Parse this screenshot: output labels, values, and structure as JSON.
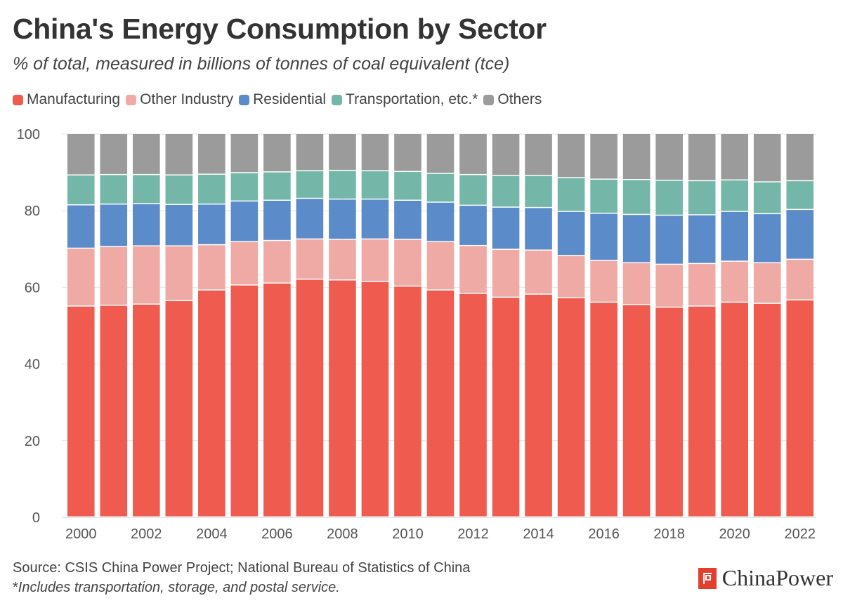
{
  "header": {
    "title": "China's Energy Consumption by Sector",
    "subtitle": "% of total, measured in billions of tonnes of coal equivalent (tce)"
  },
  "footer": {
    "source": "Source: CSIS China Power Project; National Bureau of Statistics of China",
    "note_marker": "*",
    "note_text": "Includes transportation, storage, and postal service."
  },
  "brand": {
    "name": "ChinaPower"
  },
  "chart_data": {
    "type": "bar",
    "stacked": true,
    "categories": [
      "2000",
      "2001",
      "2002",
      "2003",
      "2004",
      "2005",
      "2006",
      "2007",
      "2008",
      "2009",
      "2010",
      "2011",
      "2012",
      "2013",
      "2014",
      "2015",
      "2016",
      "2017",
      "2018",
      "2019",
      "2020",
      "2021",
      "2022"
    ],
    "x_tick_labels": [
      "2000",
      "",
      "2002",
      "",
      "2004",
      "",
      "2006",
      "",
      "2008",
      "",
      "2010",
      "",
      "2012",
      "",
      "2014",
      "",
      "2016",
      "",
      "2018",
      "",
      "2020",
      "",
      "2022"
    ],
    "ylim": [
      0,
      100
    ],
    "yticks": [
      0,
      20,
      40,
      60,
      80,
      100
    ],
    "grid": true,
    "legend_position": "top-left",
    "series": [
      {
        "name": "Manufacturing",
        "color": "#ef5b4e",
        "values": [
          55.0,
          55.2,
          55.5,
          56.4,
          59.2,
          60.5,
          61.0,
          62.0,
          61.8,
          61.4,
          60.2,
          59.2,
          58.3,
          57.3,
          58.1,
          57.2,
          56.0,
          55.4,
          54.7,
          55.0,
          56.0,
          55.7,
          56.6
        ]
      },
      {
        "name": "Other Industry",
        "color": "#f0aaa6",
        "values": [
          15.1,
          15.3,
          15.2,
          14.3,
          11.8,
          11.3,
          11.1,
          10.5,
          10.6,
          11.1,
          12.2,
          12.6,
          12.5,
          12.5,
          11.5,
          11.0,
          10.9,
          10.9,
          11.2,
          11.1,
          10.7,
          10.6,
          10.6
        ]
      },
      {
        "name": "Residential",
        "color": "#5b8bc8",
        "values": [
          11.3,
          11.1,
          11.0,
          10.8,
          10.6,
          10.6,
          10.5,
          10.6,
          10.5,
          10.4,
          10.2,
          10.3,
          10.5,
          11.0,
          11.1,
          11.5,
          12.3,
          12.6,
          12.8,
          12.7,
          13.0,
          12.8,
          13.0
        ]
      },
      {
        "name": "Transportation, etc.*",
        "color": "#74b7a8",
        "values": [
          7.8,
          7.7,
          7.6,
          7.7,
          7.8,
          7.4,
          7.4,
          7.2,
          7.5,
          7.4,
          7.5,
          7.5,
          8.0,
          8.3,
          8.4,
          8.8,
          8.9,
          9.1,
          9.1,
          8.9,
          8.2,
          8.3,
          7.5
        ]
      },
      {
        "name": "Others",
        "color": "#9b9b9b",
        "values": [
          10.8,
          10.7,
          10.7,
          10.8,
          10.6,
          10.2,
          10.0,
          9.7,
          9.6,
          9.7,
          9.9,
          10.4,
          10.7,
          10.9,
          10.9,
          11.5,
          11.9,
          12.0,
          12.2,
          12.3,
          12.1,
          12.6,
          12.3
        ]
      }
    ]
  }
}
